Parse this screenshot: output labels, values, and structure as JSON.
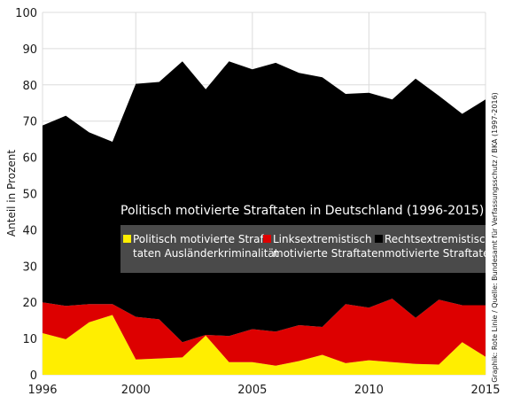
{
  "chart_data": {
    "type": "area",
    "title": "Politisch motivierte Straftaten in Deutschland (1996-2015)",
    "ylabel": "Anteil in Prozent",
    "xlabel": "",
    "xlim": [
      1996,
      2015
    ],
    "ylim": [
      0,
      100
    ],
    "grid": true,
    "stacked": true,
    "x_ticks": [
      "1996",
      "2000",
      "2005",
      "2010",
      "2015"
    ],
    "y_ticks": [
      "0",
      "10",
      "20",
      "30",
      "40",
      "50",
      "60",
      "70",
      "80",
      "90",
      "100"
    ],
    "x": [
      1996,
      1997,
      1998,
      1999,
      2000,
      2001,
      2002,
      2003,
      2004,
      2005,
      2006,
      2007,
      2008,
      2009,
      2010,
      2011,
      2012,
      2013,
      2014,
      2015
    ],
    "series": [
      {
        "name": "Politisch motivierte Straftaten Ausländerkriminalität",
        "color": "#ffee00",
        "values": [
          11.5,
          9.8,
          14.5,
          16.5,
          4.2,
          4.5,
          4.8,
          10.8,
          3.5,
          3.5,
          2.5,
          3.8,
          5.5,
          3.2,
          4.0,
          3.5,
          3.0,
          2.8,
          9.0,
          5.0
        ]
      },
      {
        "name": "Linksextremistisch motivierte Straftaten",
        "color": "#dd0000",
        "values": [
          8.5,
          9.2,
          5.0,
          3.0,
          11.8,
          10.8,
          4.2,
          0.2,
          7.2,
          9.1,
          9.4,
          9.9,
          7.7,
          16.3,
          14.5,
          17.5,
          12.7,
          17.9,
          10.2,
          14.2
        ]
      },
      {
        "name": "Rechtsextremistisch motivierte Straftaten",
        "color": "#000000",
        "values": [
          48.8,
          52.5,
          47.4,
          44.8,
          64.3,
          65.5,
          77.5,
          67.8,
          75.8,
          71.7,
          74.2,
          69.6,
          68.9,
          58.0,
          59.3,
          55.0,
          66.0,
          56.3,
          52.8,
          56.8
        ]
      }
    ],
    "legend": {
      "placement": "center",
      "entries": [
        [
          "Politisch motivierte Straf-",
          "taten Ausländerkriminalität"
        ],
        [
          "Linksextremistisch",
          "motivierte Straftaten"
        ],
        [
          "Rechtsextremistisch",
          "motivierte Straftaten"
        ]
      ]
    }
  },
  "source_credit": "Graphik: Rote Linie / Quelle: Bundesamt für Verfassungsschutz / BKA (1997-2016)"
}
